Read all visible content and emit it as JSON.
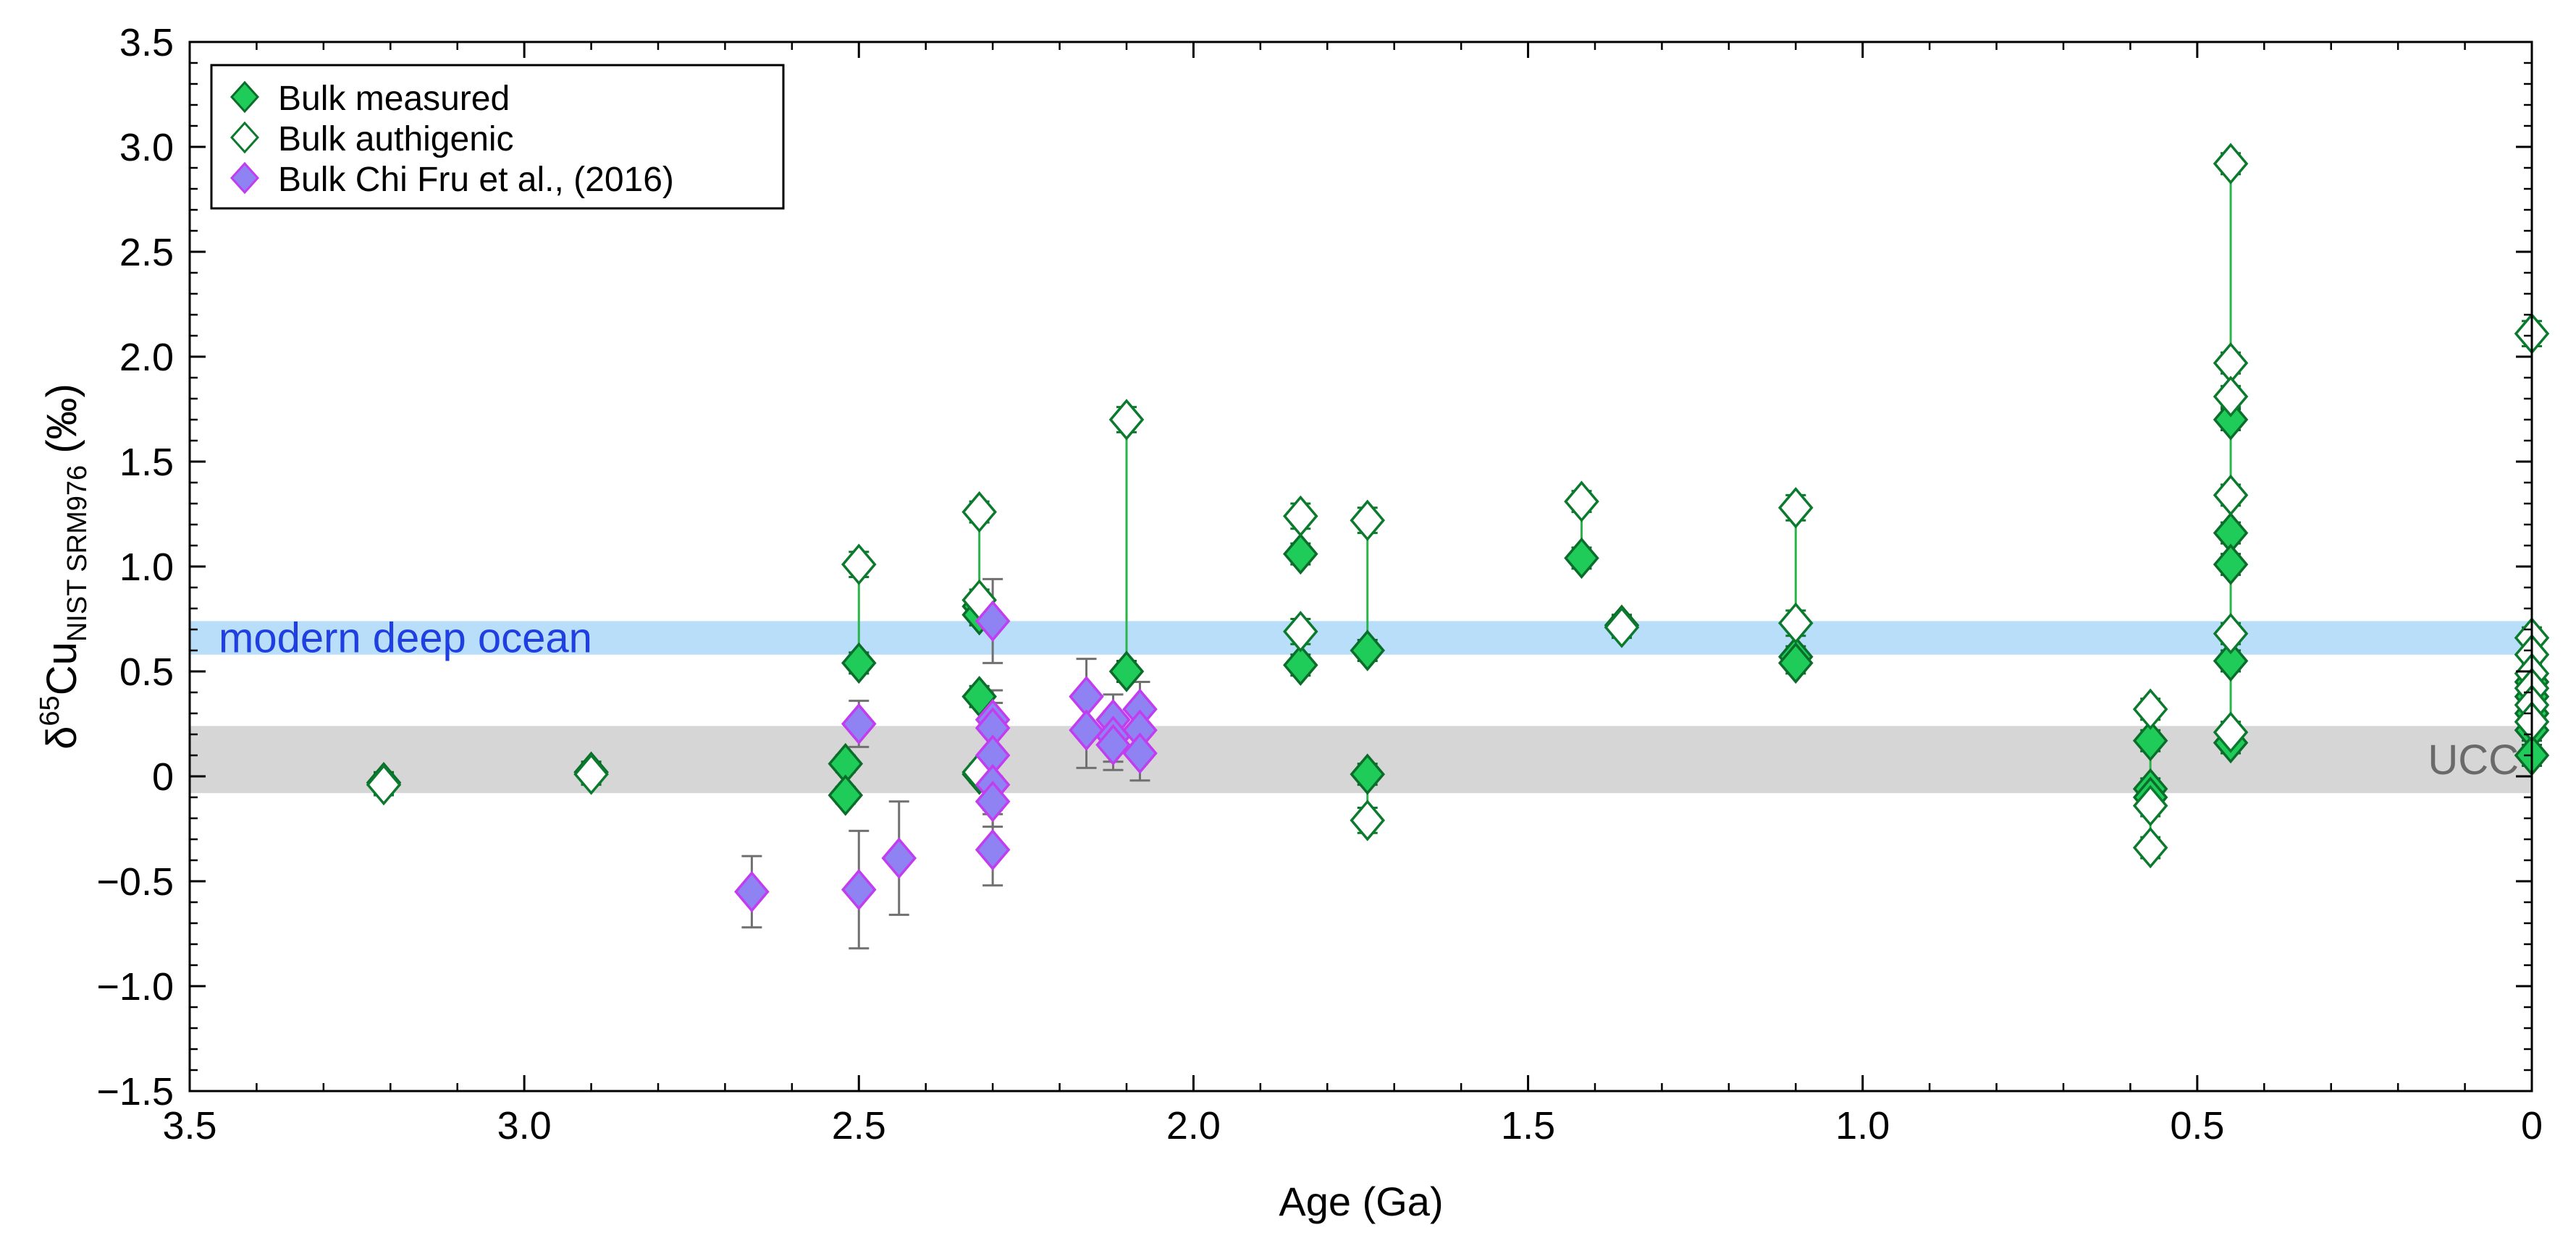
{
  "chart_data": {
    "type": "scatter",
    "title": "",
    "xlabel": "Age (Ga)",
    "ylabel": {
      "prefix": "δ",
      "sup": "65",
      "main": "Cu",
      "sub": "NIST SRM976",
      "suffix": " (‰)"
    },
    "xlim": [
      3.5,
      0
    ],
    "ylim": [
      -1.5,
      3.5
    ],
    "x_ticks": [
      3.5,
      3.0,
      2.5,
      2.0,
      1.5,
      1.0,
      0.5,
      0
    ],
    "x_tick_labels": [
      "3.5",
      "3.0",
      "2.5",
      "2.0",
      "1.5",
      "1.0",
      "0.5",
      "0"
    ],
    "y_ticks": [
      -1.5,
      -1.0,
      -0.5,
      0,
      0.5,
      1.0,
      1.5,
      2.0,
      2.5,
      3.0,
      3.5
    ],
    "y_tick_labels": [
      "−1.5",
      "−1.0",
      "−0.5",
      "0",
      "0.5",
      "1.0",
      "1.5",
      "2.0",
      "2.5",
      "3.0",
      "3.5"
    ],
    "grid": false,
    "legend_position": "top-left",
    "bands": [
      {
        "name": "modern deep ocean",
        "y_range": [
          0.58,
          0.74
        ],
        "color": "#b9defa",
        "label_color": "#1f3fe0",
        "label_side": "left"
      },
      {
        "name": "UCC",
        "y_range": [
          -0.08,
          0.24
        ],
        "color": "#d6d6d6",
        "label_color": "#6a6a6a",
        "label_side": "right"
      }
    ],
    "series": [
      {
        "name": "Bulk measured",
        "marker": "filled-diamond",
        "color": "#1fcc5a",
        "edge": "#0b6d2a",
        "points": [
          {
            "x": 3.21,
            "y": -0.03,
            "err": 0.05
          },
          {
            "x": 2.9,
            "y": 0.02,
            "err": 0.05
          },
          {
            "x": 2.52,
            "y": 0.06,
            "err": 0.04
          },
          {
            "x": 2.52,
            "y": -0.09,
            "err": 0.04
          },
          {
            "x": 2.5,
            "y": 0.54,
            "err": 0.05
          },
          {
            "x": 2.32,
            "y": 0.81,
            "err": 0.05
          },
          {
            "x": 2.32,
            "y": 0.77,
            "err": 0.05
          },
          {
            "x": 2.32,
            "y": 0.38,
            "err": 0.05
          },
          {
            "x": 2.32,
            "y": 0.01,
            "err": 0.04
          },
          {
            "x": 2.1,
            "y": 0.5,
            "err": 0.05
          },
          {
            "x": 1.84,
            "y": 1.06,
            "err": 0.05
          },
          {
            "x": 1.84,
            "y": 0.53,
            "err": 0.05
          },
          {
            "x": 1.74,
            "y": 0.6,
            "err": 0.05
          },
          {
            "x": 1.74,
            "y": 0.01,
            "err": 0.05
          },
          {
            "x": 1.42,
            "y": 1.04,
            "err": 0.05
          },
          {
            "x": 1.36,
            "y": 0.72,
            "err": 0.05
          },
          {
            "x": 1.1,
            "y": 0.57,
            "err": 0.05
          },
          {
            "x": 1.1,
            "y": 0.54,
            "err": 0.05
          },
          {
            "x": 0.57,
            "y": 0.17,
            "err": 0.05
          },
          {
            "x": 0.57,
            "y": -0.06,
            "err": 0.05
          },
          {
            "x": 0.57,
            "y": -0.1,
            "err": 0.05
          },
          {
            "x": 0.45,
            "y": 1.7,
            "err": 0.05
          },
          {
            "x": 0.45,
            "y": 1.16,
            "err": 0.05
          },
          {
            "x": 0.45,
            "y": 1.01,
            "err": 0.05
          },
          {
            "x": 0.45,
            "y": 0.55,
            "err": 0.05
          },
          {
            "x": 0.45,
            "y": 0.16,
            "err": 0.05
          },
          {
            "x": 0.0,
            "y": 0.45,
            "err": 0.05
          },
          {
            "x": 0.0,
            "y": 0.38,
            "err": 0.05
          },
          {
            "x": 0.0,
            "y": 0.3,
            "err": 0.05
          },
          {
            "x": 0.0,
            "y": 0.22,
            "err": 0.05
          },
          {
            "x": 0.0,
            "y": 0.1,
            "err": 0.05
          }
        ]
      },
      {
        "name": "Bulk authigenic",
        "marker": "open-diamond",
        "color": "#ffffff",
        "edge": "#0b7a2d",
        "points": [
          {
            "x": 3.21,
            "y": -0.04,
            "err": 0.05
          },
          {
            "x": 2.9,
            "y": 0.01,
            "err": 0.05
          },
          {
            "x": 2.5,
            "y": 1.01,
            "err": 0.06
          },
          {
            "x": 2.32,
            "y": 1.26,
            "err": 0.05
          },
          {
            "x": 2.32,
            "y": 0.84,
            "err": 0.05
          },
          {
            "x": 2.32,
            "y": 0.02,
            "err": 0.04
          },
          {
            "x": 2.1,
            "y": 1.7,
            "err": 0.06
          },
          {
            "x": 1.84,
            "y": 1.24,
            "err": 0.06
          },
          {
            "x": 1.84,
            "y": 0.69,
            "err": 0.06
          },
          {
            "x": 1.74,
            "y": 1.22,
            "err": 0.06
          },
          {
            "x": 1.74,
            "y": -0.21,
            "err": 0.06
          },
          {
            "x": 1.42,
            "y": 1.31,
            "err": 0.05
          },
          {
            "x": 1.36,
            "y": 0.71,
            "err": 0.05
          },
          {
            "x": 1.1,
            "y": 1.28,
            "err": 0.06
          },
          {
            "x": 1.1,
            "y": 0.73,
            "err": 0.06
          },
          {
            "x": 0.57,
            "y": 0.32,
            "err": 0.05
          },
          {
            "x": 0.57,
            "y": -0.14,
            "err": 0.05
          },
          {
            "x": 0.57,
            "y": -0.34,
            "err": 0.05
          },
          {
            "x": 0.45,
            "y": 2.92,
            "err": 0.05
          },
          {
            "x": 0.45,
            "y": 1.97,
            "err": 0.05
          },
          {
            "x": 0.45,
            "y": 1.81,
            "err": 0.05
          },
          {
            "x": 0.45,
            "y": 1.34,
            "err": 0.05
          },
          {
            "x": 0.45,
            "y": 0.68,
            "err": 0.05
          },
          {
            "x": 0.45,
            "y": 0.21,
            "err": 0.05
          },
          {
            "x": 0.0,
            "y": 2.11,
            "err": 0.06
          },
          {
            "x": 0.0,
            "y": 0.66,
            "err": 0.05
          },
          {
            "x": 0.0,
            "y": 0.58,
            "err": 0.05
          },
          {
            "x": 0.0,
            "y": 0.49,
            "err": 0.05
          },
          {
            "x": 0.0,
            "y": 0.42,
            "err": 0.05
          },
          {
            "x": 0.0,
            "y": 0.34,
            "err": 0.05
          },
          {
            "x": 0.0,
            "y": 0.26,
            "err": 0.05
          }
        ]
      },
      {
        "name": "Bulk Chi Fru et al., (2016)",
        "marker": "filled-diamond",
        "color": "#8f82f2",
        "edge": "#c23cf0",
        "err_color": "#707070",
        "points": [
          {
            "x": 2.66,
            "y": -0.55,
            "err": 0.17
          },
          {
            "x": 2.5,
            "y": 0.25,
            "err": 0.11
          },
          {
            "x": 2.5,
            "y": -0.54,
            "err": 0.28
          },
          {
            "x": 2.44,
            "y": -0.39,
            "err": 0.27
          },
          {
            "x": 2.3,
            "y": 0.74,
            "err": 0.2
          },
          {
            "x": 2.3,
            "y": 0.27,
            "err": 0.14
          },
          {
            "x": 2.3,
            "y": 0.23,
            "err": 0.12
          },
          {
            "x": 2.3,
            "y": 0.1,
            "err": 0.12
          },
          {
            "x": 2.3,
            "y": -0.04,
            "err": 0.12
          },
          {
            "x": 2.3,
            "y": -0.12,
            "err": 0.12
          },
          {
            "x": 2.3,
            "y": -0.35,
            "err": 0.17
          },
          {
            "x": 2.16,
            "y": 0.38,
            "err": 0.18
          },
          {
            "x": 2.16,
            "y": 0.22,
            "err": 0.18
          },
          {
            "x": 2.12,
            "y": 0.27,
            "err": 0.12
          },
          {
            "x": 2.12,
            "y": 0.19,
            "err": 0.12
          },
          {
            "x": 2.12,
            "y": 0.15,
            "err": 0.12
          },
          {
            "x": 2.08,
            "y": 0.32,
            "err": 0.13
          },
          {
            "x": 2.08,
            "y": 0.22,
            "err": 0.13
          },
          {
            "x": 2.08,
            "y": 0.11,
            "err": 0.13
          }
        ]
      }
    ],
    "connectors": [
      {
        "x": 2.5,
        "y1": 0.54,
        "y2": 1.01
      },
      {
        "x": 2.32,
        "y1": 0.77,
        "y2": 1.26
      },
      {
        "x": 2.1,
        "y1": 0.5,
        "y2": 1.7
      },
      {
        "x": 1.84,
        "y1": 1.06,
        "y2": 1.24
      },
      {
        "x": 1.84,
        "y1": 0.53,
        "y2": 0.69
      },
      {
        "x": 1.74,
        "y1": 0.6,
        "y2": 1.22
      },
      {
        "x": 1.74,
        "y1": -0.21,
        "y2": 0.01
      },
      {
        "x": 1.42,
        "y1": 1.04,
        "y2": 1.31
      },
      {
        "x": 1.1,
        "y1": 0.57,
        "y2": 1.28
      },
      {
        "x": 0.57,
        "y1": -0.34,
        "y2": 0.32
      },
      {
        "x": 0.45,
        "y1": 0.16,
        "y2": 2.92
      },
      {
        "x": 0.0,
        "y1": 0.1,
        "y2": 2.11
      }
    ]
  }
}
